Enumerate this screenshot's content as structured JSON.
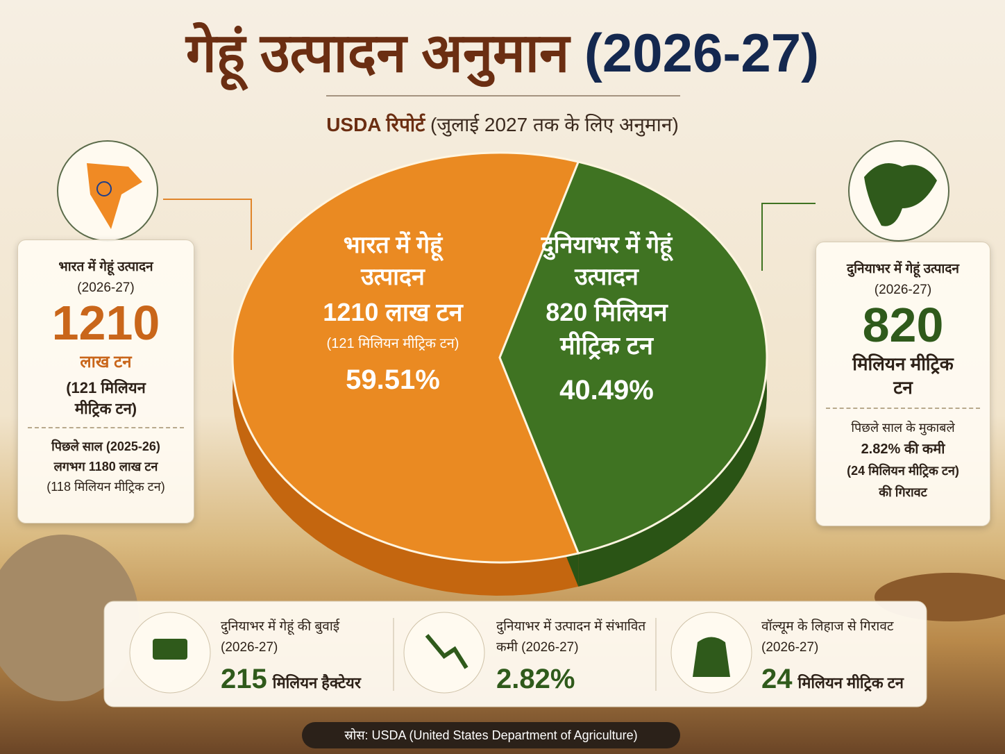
{
  "chart_data": {
    "type": "pie",
    "title": "गेहूं उत्पादन अनुमान",
    "title_year": "(2026-27)",
    "subtitle_bold": "USDA रिपोर्ट",
    "subtitle": "(जुलाई 2027 तक के लिए अनुमान)",
    "categories": [
      "भारत में गेहूं उत्पादन",
      "दुनियाभर में गेहूं उत्पादन"
    ],
    "amounts": [
      "1210 लाख टन",
      "820 मिलियन मीट्रिक टन"
    ],
    "notes": [
      "(121 मिलियन मीट्रिक टन)",
      null
    ],
    "values": [
      59.51,
      40.49
    ],
    "value_labels": [
      "59.51%",
      "40.49%"
    ],
    "colors": [
      "#ea8a22",
      "#3f7322"
    ],
    "side_colors": [
      "#c4660f",
      "#2a5415"
    ]
  },
  "left_panel": {
    "heading": "भारत में गेहूं उत्पादन",
    "period": "(2026-27)",
    "big": 1210,
    "unit": "लाख टन",
    "note": "(121 मिलियन मीट्रिक टन)",
    "footer": [
      "पिछले साल (2025-26)",
      "लगभग 1180 लाख टन",
      "(118 मिलियन मीट्रिक टन)"
    ]
  },
  "right_panel": {
    "heading": "दुनियाभर में गेहूं उत्पादन",
    "period": "(2026-27)",
    "big": 820,
    "unit": "मिलियन मीट्रिक टन",
    "footer": [
      "पिछले साल के मुकाबले",
      "2.82% की कमी",
      "(24 मिलियन मीट्रिक टन)",
      "की गिरावट"
    ]
  },
  "stats": [
    {
      "label": "दुनियाभर में गेहूं की बुवाई (2026-27)",
      "value": "215",
      "unit": "मिलियन हैक्टेयर"
    },
    {
      "label": "दुनियाभर में उत्पादन में संभावित कमी (2026-27)",
      "value": "2.82%"
    },
    {
      "label": "वॉल्यूम के लिहाज से गिरावट (2026-27)",
      "value": "24",
      "unit": "मिलियन मीट्रिक टन"
    }
  ],
  "source": "स्रोस: USDA (United States Department of Agriculture)"
}
